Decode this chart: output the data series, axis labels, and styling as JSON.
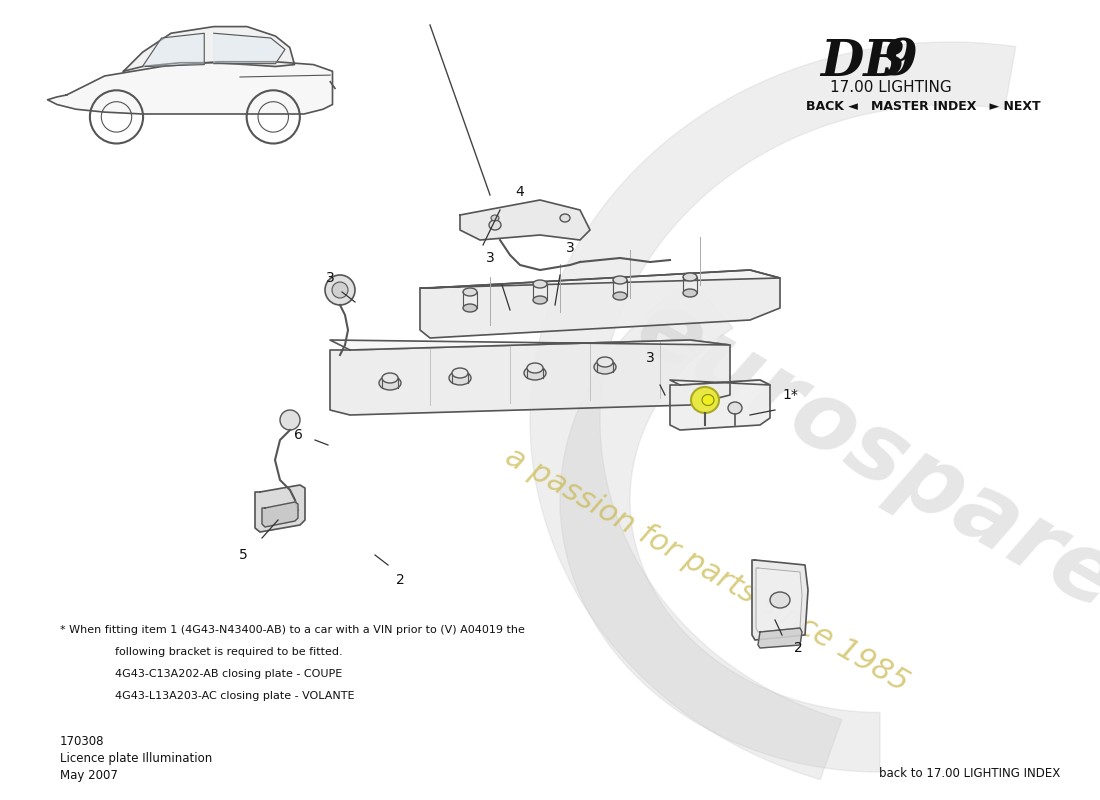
{
  "title_model": "DB 9",
  "title_section": "17.00 LIGHTING",
  "nav_text": "BACK ◄   MASTER INDEX   ► NEXT",
  "doc_number": "170308",
  "doc_name": "Licence plate Illumination",
  "doc_date": "May 2007",
  "footer_right": "back to 17.00 LIGHTING INDEX",
  "footnote_line1": "* When fitting item 1 (4G43-N43400-AB) to a car with a VIN prior to (V) A04019 the",
  "footnote_line2": "following bracket is required to be fitted.",
  "footnote_line3": "4G43-C13A202-AB closing plate - COUPE",
  "footnote_line4": "4G43-L13A203-AC closing plate - VOLANTE",
  "bg_color": "#ffffff",
  "watermark_main_color": "#c8b84a",
  "watermark_grey_color": "#c8c8c8",
  "line_color": "#555555",
  "light_fill": "#e8e8e8",
  "lighter_fill": "#f0f0f0"
}
